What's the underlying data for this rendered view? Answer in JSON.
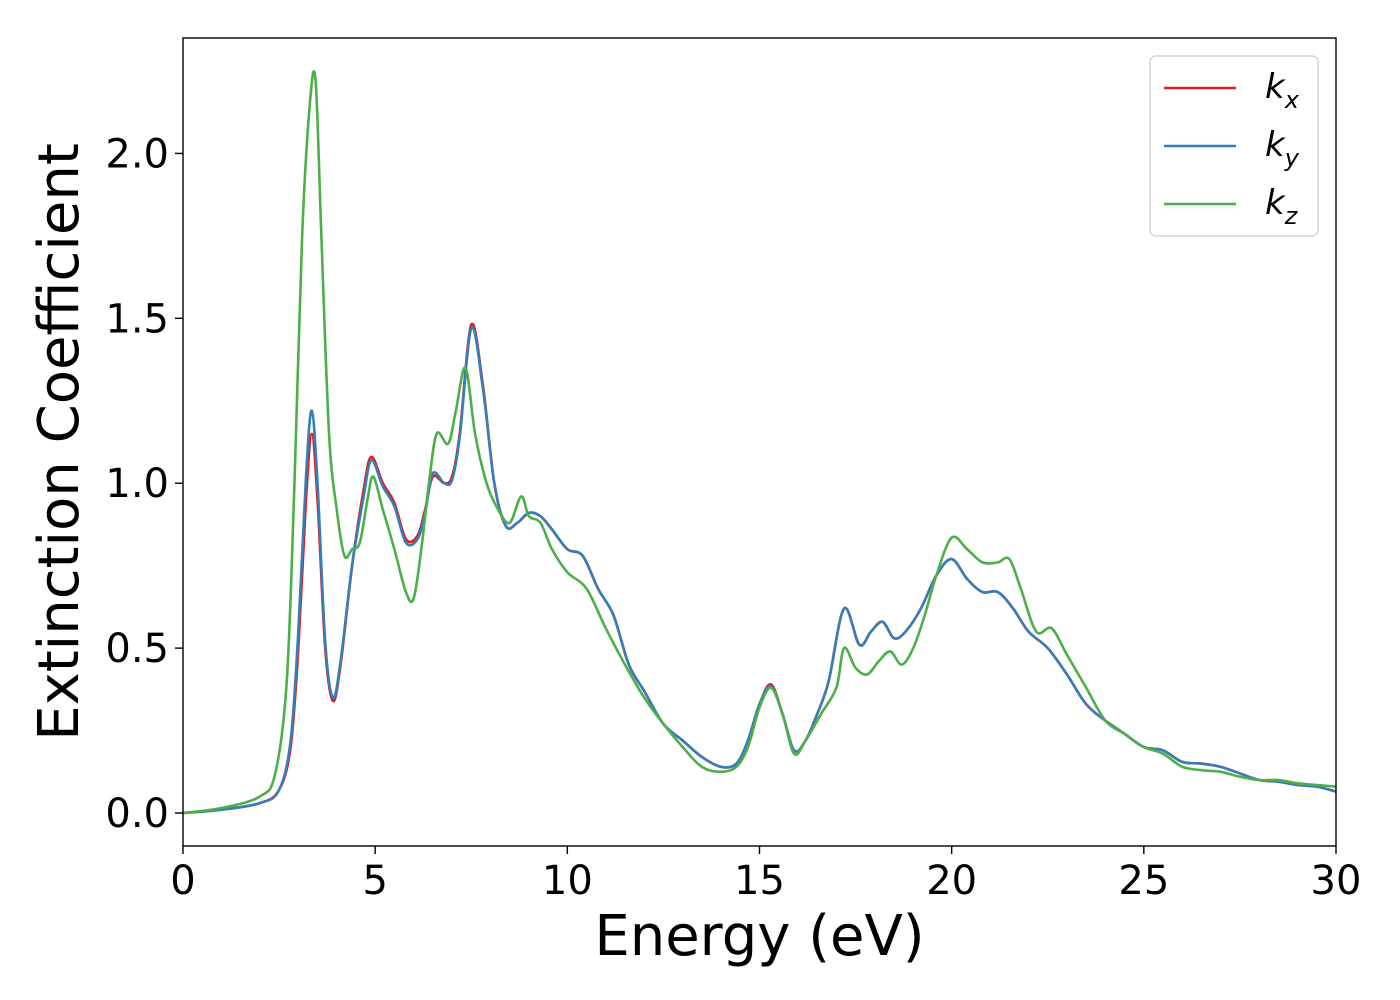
{
  "chart_data": {
    "type": "line",
    "title": "",
    "xlabel": "Energy (eV)",
    "ylabel": "Extinction Coefficient",
    "xlim": [
      0,
      30
    ],
    "ylim": [
      -0.1,
      2.35
    ],
    "xticks": [
      0,
      5,
      10,
      15,
      20,
      25,
      30
    ],
    "xtick_labels": [
      "0",
      "5",
      "10",
      "15",
      "20",
      "25",
      "30"
    ],
    "yticks": [
      0.0,
      0.5,
      1.0,
      1.5,
      2.0
    ],
    "ytick_labels": [
      "0.0",
      "0.5",
      "1.0",
      "1.5",
      "2.0"
    ],
    "grid": false,
    "legend_position": "top-right",
    "series": [
      {
        "name": "k",
        "subscript": "x",
        "color": "#e41a1c",
        "x": [
          0,
          1,
          2,
          2.5,
          2.8,
          3.0,
          3.2,
          3.35,
          3.5,
          3.7,
          3.9,
          4.1,
          4.4,
          4.7,
          4.9,
          5.2,
          5.5,
          5.8,
          6.1,
          6.3,
          6.5,
          6.8,
          7.0,
          7.2,
          7.5,
          7.8,
          8.1,
          8.4,
          8.7,
          9.0,
          9.3,
          9.6,
          10.0,
          10.4,
          10.8,
          11.2,
          11.6,
          12.0,
          12.5,
          13.0,
          13.5,
          14.0,
          14.4,
          14.7,
          15.0,
          15.3,
          15.6,
          15.9,
          16.2,
          16.5,
          16.8,
          17.2,
          17.6,
          17.9,
          18.2,
          18.5,
          18.8,
          19.2,
          19.6,
          20.0,
          20.4,
          20.8,
          21.2,
          21.6,
          22.0,
          22.5,
          23.0,
          23.5,
          24.0,
          24.5,
          25.0,
          25.5,
          26.0,
          26.5,
          27.0,
          27.5,
          28.0,
          28.5,
          29.0,
          29.5,
          30.0
        ],
        "y": [
          0.0,
          0.01,
          0.03,
          0.07,
          0.2,
          0.5,
          0.95,
          1.15,
          0.95,
          0.5,
          0.34,
          0.45,
          0.75,
          0.98,
          1.08,
          1.0,
          0.94,
          0.83,
          0.84,
          0.92,
          1.02,
          1.0,
          1.02,
          1.15,
          1.48,
          1.3,
          1.0,
          0.87,
          0.88,
          0.91,
          0.9,
          0.86,
          0.8,
          0.78,
          0.68,
          0.6,
          0.45,
          0.37,
          0.27,
          0.22,
          0.17,
          0.14,
          0.15,
          0.22,
          0.33,
          0.39,
          0.3,
          0.19,
          0.22,
          0.3,
          0.4,
          0.62,
          0.51,
          0.55,
          0.58,
          0.53,
          0.55,
          0.62,
          0.72,
          0.77,
          0.71,
          0.67,
          0.67,
          0.62,
          0.55,
          0.5,
          0.42,
          0.33,
          0.28,
          0.24,
          0.2,
          0.19,
          0.155,
          0.15,
          0.14,
          0.12,
          0.1,
          0.095,
          0.085,
          0.08,
          0.065
        ]
      },
      {
        "name": "k",
        "subscript": "y",
        "color": "#377eb8",
        "x": [
          0,
          1,
          2,
          2.5,
          2.8,
          3.0,
          3.2,
          3.35,
          3.5,
          3.7,
          3.9,
          4.1,
          4.4,
          4.7,
          4.9,
          5.2,
          5.5,
          5.8,
          6.1,
          6.3,
          6.5,
          6.8,
          7.0,
          7.2,
          7.5,
          7.8,
          8.1,
          8.4,
          8.7,
          9.0,
          9.3,
          9.6,
          10.0,
          10.4,
          10.8,
          11.2,
          11.6,
          12.0,
          12.5,
          13.0,
          13.5,
          14.0,
          14.4,
          14.7,
          15.0,
          15.3,
          15.6,
          15.9,
          16.2,
          16.5,
          16.8,
          17.2,
          17.6,
          17.9,
          18.2,
          18.5,
          18.8,
          19.2,
          19.6,
          20.0,
          20.4,
          20.8,
          21.2,
          21.6,
          22.0,
          22.5,
          23.0,
          23.5,
          24.0,
          24.5,
          25.0,
          25.5,
          26.0,
          26.5,
          27.0,
          27.5,
          28.0,
          28.5,
          29.0,
          29.5,
          30.0
        ],
        "y": [
          0.0,
          0.01,
          0.03,
          0.07,
          0.22,
          0.55,
          1.02,
          1.22,
          1.0,
          0.52,
          0.35,
          0.46,
          0.75,
          0.96,
          1.07,
          0.99,
          0.93,
          0.82,
          0.83,
          0.91,
          1.03,
          1.0,
          1.01,
          1.14,
          1.47,
          1.29,
          1.0,
          0.87,
          0.88,
          0.91,
          0.9,
          0.86,
          0.8,
          0.78,
          0.68,
          0.6,
          0.45,
          0.37,
          0.27,
          0.22,
          0.17,
          0.14,
          0.15,
          0.22,
          0.33,
          0.385,
          0.3,
          0.19,
          0.22,
          0.3,
          0.4,
          0.62,
          0.51,
          0.55,
          0.58,
          0.53,
          0.55,
          0.62,
          0.72,
          0.77,
          0.71,
          0.67,
          0.67,
          0.62,
          0.55,
          0.5,
          0.42,
          0.33,
          0.28,
          0.24,
          0.2,
          0.19,
          0.155,
          0.15,
          0.14,
          0.12,
          0.1,
          0.095,
          0.085,
          0.08,
          0.065
        ]
      },
      {
        "name": "k",
        "subscript": "z",
        "color": "#4daf4a",
        "x": [
          0,
          1,
          2,
          2.4,
          2.7,
          2.9,
          3.1,
          3.3,
          3.45,
          3.6,
          3.8,
          4.0,
          4.2,
          4.4,
          4.6,
          4.8,
          4.95,
          5.2,
          5.5,
          5.8,
          6.0,
          6.2,
          6.4,
          6.6,
          6.9,
          7.1,
          7.35,
          7.6,
          7.9,
          8.2,
          8.5,
          8.8,
          9.0,
          9.3,
          9.6,
          10.0,
          10.5,
          11.0,
          11.5,
          12.0,
          12.5,
          13.0,
          13.5,
          14.0,
          14.4,
          14.7,
          15.0,
          15.3,
          15.6,
          15.9,
          16.2,
          16.6,
          17.0,
          17.2,
          17.5,
          17.8,
          18.1,
          18.4,
          18.7,
          19.0,
          19.3,
          19.6,
          20.0,
          20.4,
          20.8,
          21.2,
          21.5,
          21.8,
          22.2,
          22.6,
          23.0,
          23.5,
          24.0,
          24.5,
          25.0,
          25.5,
          26.0,
          26.5,
          27.0,
          27.5,
          28.0,
          28.5,
          29.0,
          29.5,
          30.0
        ],
        "y": [
          0.0,
          0.015,
          0.05,
          0.12,
          0.4,
          1.0,
          1.75,
          2.15,
          2.22,
          1.75,
          1.15,
          0.92,
          0.78,
          0.8,
          0.82,
          0.95,
          1.02,
          0.92,
          0.8,
          0.67,
          0.65,
          0.8,
          1.0,
          1.15,
          1.12,
          1.22,
          1.35,
          1.15,
          1.0,
          0.92,
          0.88,
          0.96,
          0.9,
          0.88,
          0.8,
          0.73,
          0.68,
          0.56,
          0.45,
          0.35,
          0.27,
          0.2,
          0.14,
          0.125,
          0.14,
          0.2,
          0.32,
          0.38,
          0.3,
          0.18,
          0.22,
          0.3,
          0.38,
          0.5,
          0.44,
          0.42,
          0.46,
          0.49,
          0.45,
          0.5,
          0.6,
          0.72,
          0.835,
          0.8,
          0.76,
          0.76,
          0.77,
          0.68,
          0.55,
          0.56,
          0.48,
          0.38,
          0.28,
          0.24,
          0.2,
          0.18,
          0.14,
          0.13,
          0.125,
          0.11,
          0.1,
          0.1,
          0.09,
          0.085,
          0.08
        ]
      }
    ]
  }
}
